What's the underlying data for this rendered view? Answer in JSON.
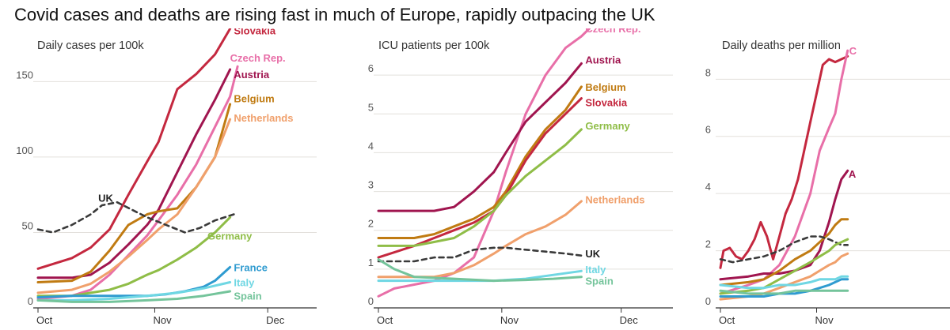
{
  "headline": "Covid cases and deaths are rising fast in much of Europe, rapidly outpacing the UK",
  "colors": {
    "Slovakia": "#c4283f",
    "Czech Rep.": "#e86fa8",
    "Austria": "#a0154f",
    "Belgium": "#c07b12",
    "Netherlands": "#f0a06c",
    "UK": "#3a3a3a",
    "Germany": "#8fbd47",
    "France": "#2f9bd0",
    "Italy": "#6fd7e3",
    "Spain": "#74c49b"
  },
  "chart_data": [
    {
      "type": "line",
      "title": "Daily cases per 100k",
      "xlim": [
        1,
        75
      ],
      "ylim": [
        0,
        180
      ],
      "yticks": [
        0,
        50,
        100,
        150
      ],
      "xticks": [
        {
          "x": 1,
          "label": "Oct"
        },
        {
          "x": 32,
          "label": "Nov"
        },
        {
          "x": 62,
          "label": "Dec"
        }
      ],
      "grid": true,
      "series": [
        {
          "name": "Slovakia",
          "x": [
            1,
            10,
            15,
            20,
            25,
            30,
            33,
            38,
            43,
            48,
            52
          ],
          "y": [
            26,
            33,
            40,
            52,
            75,
            97,
            110,
            145,
            155,
            168,
            185
          ]
        },
        {
          "name": "Czech Rep.",
          "x": [
            1,
            10,
            15,
            20,
            25,
            30,
            33,
            38,
            43,
            48,
            52,
            54
          ],
          "y": [
            6,
            8,
            12,
            22,
            35,
            48,
            58,
            75,
            95,
            120,
            140,
            160
          ]
        },
        {
          "name": "Austria",
          "x": [
            1,
            10,
            15,
            20,
            25,
            30,
            33,
            38,
            43,
            48,
            52
          ],
          "y": [
            20,
            20,
            22,
            30,
            42,
            55,
            65,
            90,
            115,
            138,
            158
          ]
        },
        {
          "name": "Belgium",
          "x": [
            1,
            10,
            15,
            20,
            25,
            30,
            33,
            38,
            43,
            48,
            52
          ],
          "y": [
            17,
            18,
            24,
            38,
            55,
            62,
            64,
            66,
            80,
            100,
            135
          ]
        },
        {
          "name": "Netherlands",
          "x": [
            1,
            10,
            15,
            20,
            25,
            30,
            33,
            38,
            43,
            48,
            52
          ],
          "y": [
            10,
            12,
            16,
            24,
            34,
            45,
            52,
            62,
            80,
            100,
            125
          ]
        },
        {
          "name": "UK",
          "x": [
            1,
            5,
            10,
            15,
            18,
            22,
            26,
            30,
            33,
            36,
            40,
            44,
            48,
            53
          ],
          "y": [
            52,
            50,
            55,
            62,
            68,
            70,
            65,
            60,
            57,
            54,
            50,
            53,
            58,
            62
          ]
        },
        {
          "name": "Germany",
          "x": [
            1,
            10,
            15,
            20,
            25,
            30,
            33,
            38,
            43,
            48,
            52
          ],
          "y": [
            8,
            8,
            10,
            12,
            16,
            22,
            25,
            32,
            40,
            50,
            60
          ]
        },
        {
          "name": "France",
          "x": [
            1,
            10,
            20,
            30,
            35,
            40,
            45,
            48,
            52
          ],
          "y": [
            7,
            8,
            8,
            8,
            9,
            11,
            14,
            18,
            27
          ]
        },
        {
          "name": "Italy",
          "x": [
            1,
            10,
            20,
            30,
            38,
            45,
            52
          ],
          "y": [
            5,
            5,
            6,
            8,
            10,
            13,
            17
          ]
        },
        {
          "name": "Spain",
          "x": [
            1,
            10,
            20,
            30,
            38,
            45,
            52
          ],
          "y": [
            5,
            4,
            4,
            5,
            6,
            8,
            11
          ]
        }
      ],
      "labels": [
        {
          "series": "Slovakia",
          "text": "Slovakia",
          "x": 53,
          "y": 184
        },
        {
          "series": "Czech Rep.",
          "text": "Czech Rep.",
          "x": 52,
          "y": 166
        },
        {
          "series": "Austria",
          "text": "Austria",
          "x": 53,
          "y": 155
        },
        {
          "series": "Belgium",
          "text": "Belgium",
          "x": 53,
          "y": 139
        },
        {
          "series": "Netherlands",
          "text": "Netherlands",
          "x": 53,
          "y": 126
        },
        {
          "series": "UK",
          "text": "UK",
          "x": 17,
          "y": 73
        },
        {
          "series": "Germany",
          "text": "Germany",
          "x": 46,
          "y": 48
        },
        {
          "series": "France",
          "text": "France",
          "x": 53,
          "y": 27
        },
        {
          "series": "Italy",
          "text": "Italy",
          "x": 53,
          "y": 17
        },
        {
          "series": "Spain",
          "text": "Spain",
          "x": 53,
          "y": 8
        }
      ]
    },
    {
      "type": "line",
      "title": "ICU patients per 100k",
      "xlim": [
        1,
        75
      ],
      "ylim": [
        0,
        7
      ],
      "yticks": [
        0,
        1,
        2,
        3,
        4,
        5,
        6
      ],
      "xticks": [
        {
          "x": 1,
          "label": "Oct"
        },
        {
          "x": 32,
          "label": "Nov"
        },
        {
          "x": 62,
          "label": "Dec"
        }
      ],
      "grid": true,
      "series": [
        {
          "name": "Czech Rep.",
          "x": [
            1,
            5,
            10,
            15,
            20,
            25,
            30,
            33,
            38,
            43,
            48,
            52,
            54
          ],
          "y": [
            0.3,
            0.5,
            0.6,
            0.7,
            0.9,
            1.3,
            2.5,
            3.5,
            5.0,
            6.0,
            6.7,
            7.0,
            7.2
          ]
        },
        {
          "name": "Austria",
          "x": [
            1,
            10,
            15,
            20,
            25,
            30,
            33,
            38,
            43,
            48,
            52
          ],
          "y": [
            2.5,
            2.5,
            2.5,
            2.6,
            3.0,
            3.5,
            4.0,
            4.8,
            5.3,
            5.8,
            6.3
          ]
        },
        {
          "name": "Belgium",
          "x": [
            1,
            10,
            15,
            20,
            25,
            30,
            33,
            38,
            43,
            48,
            52
          ],
          "y": [
            1.8,
            1.8,
            1.9,
            2.1,
            2.3,
            2.6,
            3.0,
            3.9,
            4.6,
            5.1,
            5.7
          ]
        },
        {
          "name": "Slovakia",
          "x": [
            1,
            10,
            15,
            20,
            25,
            30,
            33,
            38,
            43,
            48,
            52
          ],
          "y": [
            1.3,
            1.6,
            1.8,
            2.0,
            2.2,
            2.5,
            2.9,
            3.8,
            4.5,
            5.0,
            5.4
          ]
        },
        {
          "name": "Germany",
          "x": [
            1,
            10,
            15,
            20,
            25,
            30,
            33,
            38,
            43,
            48,
            52
          ],
          "y": [
            1.6,
            1.6,
            1.7,
            1.8,
            2.1,
            2.5,
            2.9,
            3.4,
            3.8,
            4.2,
            4.6
          ]
        },
        {
          "name": "Netherlands",
          "x": [
            1,
            10,
            15,
            20,
            25,
            30,
            33,
            38,
            43,
            48,
            52
          ],
          "y": [
            0.8,
            0.8,
            0.8,
            0.9,
            1.1,
            1.4,
            1.6,
            1.9,
            2.1,
            2.4,
            2.75
          ]
        },
        {
          "name": "UK",
          "x": [
            1,
            10,
            15,
            20,
            25,
            30,
            33,
            38,
            43,
            48,
            52
          ],
          "y": [
            1.2,
            1.2,
            1.3,
            1.3,
            1.5,
            1.55,
            1.55,
            1.5,
            1.45,
            1.4,
            1.35
          ]
        },
        {
          "name": "Italy",
          "x": [
            1,
            10,
            20,
            30,
            38,
            45,
            52
          ],
          "y": [
            0.7,
            0.7,
            0.7,
            0.7,
            0.75,
            0.85,
            0.95
          ]
        },
        {
          "name": "Spain",
          "x": [
            1,
            5,
            10,
            20,
            30,
            38,
            45,
            52
          ],
          "y": [
            1.25,
            1.0,
            0.8,
            0.75,
            0.7,
            0.72,
            0.75,
            0.8
          ]
        }
      ],
      "labels": [
        {
          "series": "Czech Rep.",
          "text": "Czech Rep.",
          "x": 53,
          "y": 7.2
        },
        {
          "series": "Austria",
          "text": "Austria",
          "x": 53,
          "y": 6.4
        },
        {
          "series": "Belgium",
          "text": "Belgium",
          "x": 53,
          "y": 5.7
        },
        {
          "series": "Slovakia",
          "text": "Slovakia",
          "x": 53,
          "y": 5.3
        },
        {
          "series": "Germany",
          "text": "Germany",
          "x": 53,
          "y": 4.7
        },
        {
          "series": "Netherlands",
          "text": "Netherlands",
          "x": 53,
          "y": 2.8
        },
        {
          "series": "UK",
          "text": "UK",
          "x": 53,
          "y": 1.4
        },
        {
          "series": "Italy",
          "text": "Italy",
          "x": 53,
          "y": 1.0
        },
        {
          "series": "Spain",
          "text": "Spain",
          "x": 53,
          "y": 0.7
        }
      ]
    },
    {
      "type": "line",
      "title": "Daily deaths per million",
      "xlim": [
        1,
        75
      ],
      "ylim": [
        0,
        9.5
      ],
      "yticks": [
        0,
        2,
        4,
        6,
        8
      ],
      "xticks": [
        {
          "x": 1,
          "label": "Oct"
        },
        {
          "x": 32,
          "label": "Nov"
        }
      ],
      "grid": true,
      "series": [
        {
          "name": "Slovakia",
          "x": [
            1,
            2,
            4,
            6,
            8,
            10,
            12,
            14,
            16,
            18,
            20,
            22,
            24,
            26,
            28,
            30,
            32,
            34,
            36,
            38,
            40,
            42
          ],
          "y": [
            1.4,
            2.0,
            2.1,
            1.8,
            1.7,
            2.0,
            2.4,
            3.0,
            2.5,
            1.7,
            2.5,
            3.3,
            3.8,
            4.5,
            5.5,
            6.5,
            7.5,
            8.5,
            8.7,
            8.6,
            8.7,
            8.8
          ]
        },
        {
          "name": "Czech Rep.",
          "x": [
            1,
            10,
            15,
            20,
            25,
            30,
            33,
            36,
            38,
            40,
            42
          ],
          "y": [
            0.5,
            0.8,
            1.0,
            1.5,
            2.5,
            4.0,
            5.5,
            6.3,
            6.8,
            8.0,
            9.0
          ]
        },
        {
          "name": "Austria",
          "x": [
            1,
            10,
            15,
            20,
            25,
            30,
            33,
            36,
            38,
            40,
            42
          ],
          "y": [
            1.0,
            1.1,
            1.2,
            1.2,
            1.3,
            1.5,
            2.0,
            3.0,
            3.8,
            4.5,
            4.8
          ]
        },
        {
          "name": "Belgium",
          "x": [
            1,
            10,
            15,
            20,
            25,
            30,
            33,
            36,
            38,
            40,
            42
          ],
          "y": [
            0.8,
            0.9,
            1.0,
            1.3,
            1.7,
            2.0,
            2.3,
            2.6,
            2.9,
            3.1,
            3.1
          ]
        },
        {
          "name": "UK",
          "x": [
            1,
            5,
            10,
            15,
            20,
            25,
            30,
            33,
            36,
            38,
            40,
            42
          ],
          "y": [
            1.7,
            1.6,
            1.7,
            1.8,
            2.0,
            2.3,
            2.5,
            2.5,
            2.4,
            2.3,
            2.2,
            2.2
          ]
        },
        {
          "name": "Germany",
          "x": [
            1,
            10,
            15,
            20,
            25,
            30,
            33,
            36,
            38,
            40,
            42
          ],
          "y": [
            0.5,
            0.6,
            0.7,
            1.0,
            1.3,
            1.6,
            1.8,
            2.0,
            2.2,
            2.3,
            2.4
          ]
        },
        {
          "name": "Netherlands",
          "x": [
            1,
            10,
            15,
            20,
            25,
            30,
            33,
            36,
            38,
            40,
            42
          ],
          "y": [
            0.3,
            0.4,
            0.5,
            0.7,
            0.9,
            1.1,
            1.3,
            1.5,
            1.6,
            1.8,
            1.9
          ]
        },
        {
          "name": "France",
          "x": [
            1,
            10,
            15,
            20,
            25,
            30,
            33,
            36,
            38,
            40,
            42
          ],
          "y": [
            0.4,
            0.4,
            0.4,
            0.5,
            0.5,
            0.6,
            0.7,
            0.8,
            0.9,
            1.0,
            1.0
          ]
        },
        {
          "name": "Italy",
          "x": [
            1,
            10,
            15,
            20,
            25,
            30,
            33,
            36,
            38,
            40,
            42
          ],
          "y": [
            0.8,
            0.7,
            0.7,
            0.8,
            0.8,
            0.9,
            1.0,
            1.0,
            1.0,
            1.1,
            1.1
          ]
        },
        {
          "name": "Spain",
          "x": [
            1,
            10,
            15,
            20,
            25,
            30,
            33,
            36,
            38,
            40,
            42
          ],
          "y": [
            0.6,
            0.5,
            0.5,
            0.5,
            0.6,
            0.6,
            0.6,
            0.6,
            0.6,
            0.6,
            0.6
          ]
        }
      ],
      "labels": [
        {
          "series": "Czech Rep.",
          "text": "C",
          "x": 42.5,
          "y": 9.0
        },
        {
          "series": "Austria",
          "text": "A",
          "x": 42.3,
          "y": 4.7
        }
      ]
    }
  ]
}
